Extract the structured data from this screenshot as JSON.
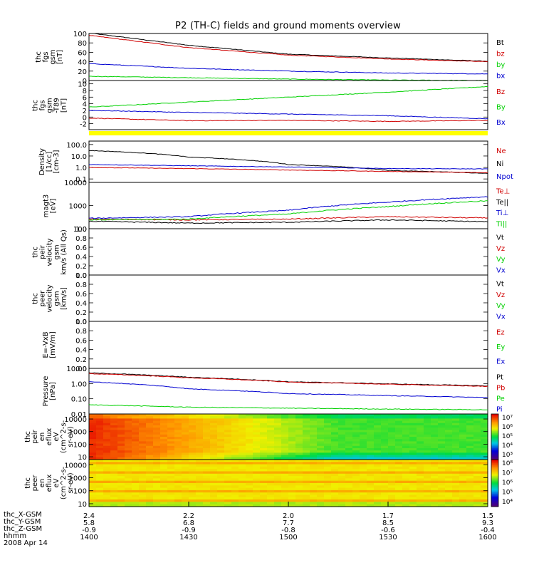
{
  "title": "P2 (TH-C) fields and ground moments overview",
  "colors": {
    "black": "#000000",
    "red": "#d00000",
    "green": "#00d000",
    "blue": "#0000d0"
  },
  "chart_data": [
    {
      "type": "line",
      "ylabel": "thc\nfgs\ngsm\n[nT]",
      "yticks": [
        "100",
        "80",
        "60",
        "40",
        "20",
        "0"
      ],
      "ylim": [
        0,
        100
      ],
      "x": [
        "1400",
        "1430",
        "1500",
        "1530",
        "1600"
      ],
      "legend": [
        {
          "label": "Bt",
          "color": "black"
        },
        {
          "label": "bz",
          "color": "red"
        },
        {
          "label": "by",
          "color": "green"
        },
        {
          "label": "bx",
          "color": "blue"
        }
      ],
      "series": [
        {
          "name": "Bt",
          "color": "black",
          "values": [
            101,
            75,
            56,
            48,
            41
          ]
        },
        {
          "name": "bz",
          "color": "red",
          "values": [
            96,
            70,
            54,
            46,
            40
          ]
        },
        {
          "name": "by",
          "color": "green",
          "values": [
            9,
            6,
            3,
            1,
            0
          ]
        },
        {
          "name": "bx",
          "color": "blue",
          "values": [
            36,
            26,
            20,
            16,
            14
          ]
        }
      ]
    },
    {
      "type": "line",
      "ylabel": "thc\nfgs\ngsm\n-T89\n[nT]",
      "yticks": [
        "10",
        "8",
        "6",
        "4",
        "2",
        "0",
        "-2"
      ],
      "ylim": [
        -3.8,
        11
      ],
      "x": [
        "1400",
        "1430",
        "1500",
        "1530",
        "1600"
      ],
      "legend": [
        {
          "label": "Bz",
          "color": "red"
        },
        {
          "label": "By",
          "color": "green"
        },
        {
          "label": "Bx",
          "color": "blue"
        }
      ],
      "series": [
        {
          "name": "Bz",
          "color": "red",
          "values": [
            -0.3,
            -1.1,
            -1.0,
            -1.3,
            -1.0
          ]
        },
        {
          "name": "By",
          "color": "green",
          "values": [
            3.0,
            4.5,
            6.0,
            7.5,
            9.2
          ]
        },
        {
          "name": "Bx",
          "color": "blue",
          "values": [
            2.0,
            1.4,
            0.9,
            0.4,
            -0.5
          ]
        }
      ]
    },
    {
      "type": "line",
      "ylabel": "Density\n[1/cc]\n[cm-3]",
      "yscale": "log",
      "yticks": [
        "100.0",
        "10.0",
        "1.0",
        "0.1"
      ],
      "ylim": [
        0.05,
        200
      ],
      "x": [
        "1400",
        "1430",
        "1500",
        "1530",
        "1600"
      ],
      "legend": [
        {
          "label": "Ne",
          "color": "red"
        },
        {
          "label": "Ni",
          "color": "black"
        },
        {
          "label": "Npot",
          "color": "blue"
        }
      ],
      "series": [
        {
          "name": "Ni",
          "color": "black",
          "values": [
            30,
            8,
            1.8,
            0.55,
            0.3
          ]
        },
        {
          "name": "Ne",
          "color": "red",
          "values": [
            1.0,
            0.8,
            0.6,
            0.45,
            0.35
          ]
        },
        {
          "name": "Npot",
          "color": "blue",
          "values": [
            1.8,
            1.4,
            1.1,
            0.8,
            0.75
          ]
        }
      ]
    },
    {
      "type": "line",
      "ylabel": "magt3\n[eV]",
      "yscale": "log",
      "yticks": [
        "10000",
        "1000",
        "100"
      ],
      "ylim": [
        100,
        10000
      ],
      "x": [
        "1400",
        "1430",
        "1500",
        "1530",
        "1600"
      ],
      "legend": [
        {
          "label": "Te⊥",
          "color": "red"
        },
        {
          "label": "Te||",
          "color": "black"
        },
        {
          "label": "Ti⊥",
          "color": "blue"
        },
        {
          "label": "Ti||",
          "color": "green"
        }
      ],
      "series": [
        {
          "name": "Te⊥",
          "color": "red",
          "values": [
            260,
            240,
            260,
            330,
            290
          ]
        },
        {
          "name": "Te||",
          "color": "black",
          "values": [
            210,
            175,
            190,
            240,
            200
          ]
        },
        {
          "name": "Ti⊥",
          "color": "blue",
          "values": [
            280,
            330,
            620,
            1400,
            2400
          ]
        },
        {
          "name": "Ti||",
          "color": "green",
          "values": [
            240,
            260,
            430,
            900,
            1600
          ]
        }
      ]
    },
    {
      "type": "line",
      "ylabel": "thc\npeir\nvelocity\ngsm\nkm/s (All Qs)",
      "yticks": [
        "1.0",
        "0.8",
        "0.6",
        "0.4",
        "0.2",
        "0.0"
      ],
      "ylim": [
        0,
        1
      ],
      "legend": [
        {
          "label": "Vt",
          "color": "black"
        },
        {
          "label": "Vz",
          "color": "red"
        },
        {
          "label": "Vy",
          "color": "green"
        },
        {
          "label": "Vx",
          "color": "blue"
        }
      ],
      "series": []
    },
    {
      "type": "line",
      "ylabel": "thc\npeer\nvelocity\ngsm\n[km/s]",
      "yticks": [
        "1.0",
        "0.8",
        "0.6",
        "0.4",
        "0.2",
        "0.0"
      ],
      "ylim": [
        0,
        1
      ],
      "legend": [
        {
          "label": "Vt",
          "color": "black"
        },
        {
          "label": "Vz",
          "color": "red"
        },
        {
          "label": "Vy",
          "color": "green"
        },
        {
          "label": "Vx",
          "color": "blue"
        }
      ],
      "series": []
    },
    {
      "type": "line",
      "ylabel": "E=-VxB\n[mV/m]",
      "yticks": [
        "1.0",
        "0.8",
        "0.6",
        "0.4",
        "0.2",
        "0.0"
      ],
      "ylim": [
        0,
        1
      ],
      "legend": [
        {
          "label": "Ez",
          "color": "red"
        },
        {
          "label": "Ey",
          "color": "green"
        },
        {
          "label": "Ex",
          "color": "blue"
        }
      ],
      "series": []
    },
    {
      "type": "line",
      "ylabel": "Pressure\n[nPa]",
      "yscale": "log",
      "yticks": [
        "10.00",
        "1.00",
        "0.10",
        "0.01"
      ],
      "ylim": [
        0.01,
        10
      ],
      "x": [
        "1400",
        "1430",
        "1500",
        "1530",
        "1600"
      ],
      "legend": [
        {
          "label": "Pt",
          "color": "black"
        },
        {
          "label": "Pb",
          "color": "red"
        },
        {
          "label": "Pe",
          "color": "green"
        },
        {
          "label": "Pi",
          "color": "blue"
        }
      ],
      "series": [
        {
          "name": "Pt",
          "color": "black",
          "values": [
            5.0,
            2.6,
            1.3,
            0.95,
            0.7
          ]
        },
        {
          "name": "Pb",
          "color": "red",
          "values": [
            4.5,
            2.4,
            1.25,
            0.9,
            0.65
          ]
        },
        {
          "name": "Pe",
          "color": "green",
          "values": [
            0.04,
            0.028,
            0.024,
            0.021,
            0.019
          ]
        },
        {
          "name": "Pi",
          "color": "blue",
          "values": [
            1.3,
            0.45,
            0.22,
            0.16,
            0.12
          ]
        }
      ]
    },
    {
      "type": "heatmap",
      "ylabel": "thc\npeir\nen\neflux\neV\n(cm^2-s-\nsr-eV)",
      "yscale": "log",
      "yticks": [
        "10000",
        "1000",
        "100",
        "10"
      ],
      "ylim": [
        6,
        25000
      ],
      "colorbar": {
        "range": [
          1000,
          10000000
        ],
        "labels": [
          "10⁷",
          "10⁶",
          "10⁵",
          "10⁴",
          "10³"
        ]
      },
      "description_values": {
        "early_level_log10": 6.8,
        "late_level_log10": 5.2
      }
    },
    {
      "type": "heatmap",
      "ylabel": "thc\npeer\nen\neflux\neV\n(cm^2-s-\nsr-eV)",
      "yscale": "log",
      "yticks": [
        "10000",
        "1000",
        "100",
        "10"
      ],
      "ylim": [
        6,
        25000
      ],
      "colorbar": {
        "range": [
          5000,
          200000000
        ],
        "labels": [
          "10⁸",
          "10⁷",
          "10⁶",
          "10⁵",
          "10⁴"
        ]
      },
      "description_values": {
        "early_level_log10": 6.9,
        "late_level_log10": 6.9
      }
    }
  ],
  "ephemeris": {
    "rows": [
      {
        "label": "thc_X-GSM",
        "values": [
          "2.4",
          "2.2",
          "2.0",
          "1.7",
          "1.5"
        ]
      },
      {
        "label": "thc_Y-GSM",
        "values": [
          "5.8",
          "6.8",
          "7.7",
          "8.5",
          "9.3"
        ]
      },
      {
        "label": "thc_Z-GSM",
        "values": [
          "-0.9",
          "-0.9",
          "-0.8",
          "-0.6",
          "-0.4"
        ]
      },
      {
        "label": "hhmm",
        "values": [
          "1400",
          "1430",
          "1500",
          "1530",
          "1600"
        ]
      }
    ],
    "date": "2008 Apr 14"
  }
}
